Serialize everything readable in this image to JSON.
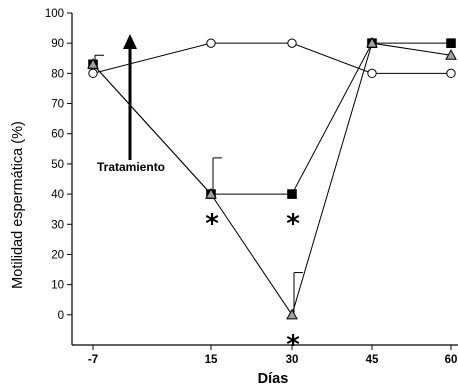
{
  "chart_data": {
    "type": "line",
    "xlabel": "Días",
    "ylabel": "Motilidad espermática (%)",
    "ylim": [
      -10,
      100
    ],
    "yticks": [
      0,
      10,
      20,
      30,
      40,
      50,
      60,
      70,
      80,
      90,
      100
    ],
    "x_categories": [
      "-7",
      "15",
      "30",
      "45",
      "60"
    ],
    "series": [
      {
        "marker": "circle",
        "fill": "#ffffff",
        "values": [
          80,
          90,
          90,
          80,
          80
        ],
        "errors": [
          null,
          null,
          null,
          null,
          null
        ]
      },
      {
        "marker": "square",
        "fill": "#000000",
        "values": [
          83,
          40,
          40,
          90,
          90
        ],
        "errors": [
          null,
          12,
          null,
          null,
          null
        ]
      },
      {
        "marker": "triangle",
        "fill": "#a0a0a0",
        "values": [
          83,
          40,
          0,
          90,
          86
        ],
        "errors": [
          3,
          null,
          14,
          null,
          null
        ]
      }
    ],
    "annotations": {
      "arrow_label": "Tratamiento",
      "significance_marks": [
        {
          "x_index": 1,
          "y": 40,
          "text": "*"
        },
        {
          "x_index": 2,
          "y": 40,
          "text": "*"
        },
        {
          "x_index": 2,
          "y": 0,
          "text": "*"
        }
      ]
    },
    "grid": false,
    "legend": "none"
  }
}
